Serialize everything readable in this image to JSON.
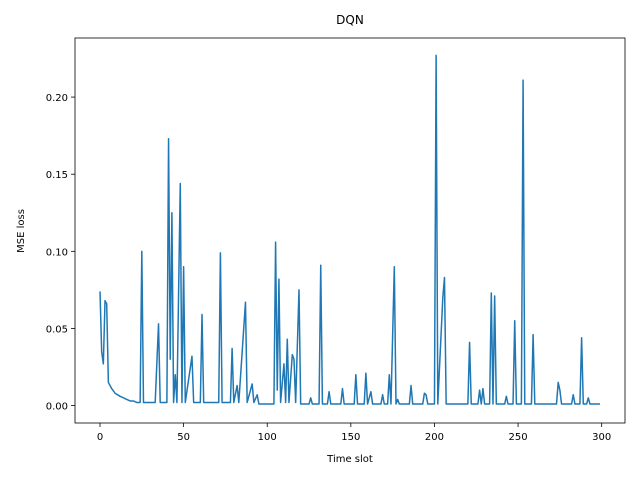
{
  "chart_data": {
    "type": "line",
    "title": "DQN",
    "xlabel": "Time slot",
    "ylabel": "MSE loss",
    "color": "#1f77b4",
    "x": [
      0,
      1,
      2,
      3,
      4,
      5,
      7,
      9,
      12,
      14,
      16,
      18,
      20,
      22,
      24,
      25,
      26,
      33,
      35,
      36,
      40,
      41,
      42,
      43,
      44,
      45,
      46,
      48,
      49,
      50,
      51,
      55,
      56,
      60,
      61,
      62,
      71,
      72,
      73,
      78,
      79,
      80,
      82,
      83,
      87,
      88,
      91,
      92,
      94,
      95,
      104,
      105,
      106,
      107,
      108,
      110,
      111,
      112,
      113,
      115,
      116,
      117,
      119,
      120,
      125,
      126,
      127,
      131,
      132,
      133,
      136,
      137,
      138,
      144,
      145,
      146,
      152,
      153,
      154,
      158,
      159,
      160,
      162,
      163,
      168,
      169,
      170,
      172,
      173,
      174,
      176,
      177,
      178,
      179,
      185,
      186,
      187,
      193,
      194,
      195,
      196,
      200,
      201,
      202,
      205,
      206,
      207,
      220,
      221,
      222,
      226,
      227,
      228,
      229,
      230,
      233,
      234,
      235,
      236,
      237,
      242,
      243,
      244,
      247,
      248,
      249,
      252,
      253,
      254,
      258,
      259,
      260,
      273,
      274,
      275,
      276,
      282,
      283,
      284,
      287,
      288,
      289,
      291,
      292,
      293,
      299
    ],
    "values": [
      0.074,
      0.035,
      0.027,
      0.068,
      0.066,
      0.015,
      0.011,
      0.008,
      0.006,
      0.005,
      0.004,
      0.003,
      0.003,
      0.002,
      0.002,
      0.1,
      0.002,
      0.002,
      0.053,
      0.002,
      0.002,
      0.173,
      0.03,
      0.125,
      0.002,
      0.02,
      0.002,
      0.144,
      0.002,
      0.09,
      0.002,
      0.032,
      0.002,
      0.002,
      0.059,
      0.002,
      0.002,
      0.099,
      0.002,
      0.002,
      0.037,
      0.002,
      0.013,
      0.002,
      0.067,
      0.002,
      0.014,
      0.002,
      0.007,
      0.001,
      0.001,
      0.106,
      0.01,
      0.082,
      0.002,
      0.027,
      0.002,
      0.043,
      0.002,
      0.033,
      0.03,
      0.002,
      0.075,
      0.001,
      0.001,
      0.005,
      0.001,
      0.001,
      0.091,
      0.001,
      0.001,
      0.009,
      0.001,
      0.001,
      0.011,
      0.001,
      0.001,
      0.02,
      0.001,
      0.001,
      0.021,
      0.001,
      0.009,
      0.001,
      0.001,
      0.007,
      0.001,
      0.001,
      0.02,
      0.001,
      0.09,
      0.001,
      0.004,
      0.001,
      0.001,
      0.013,
      0.001,
      0.001,
      0.008,
      0.007,
      0.001,
      0.001,
      0.227,
      0.001,
      0.07,
      0.083,
      0.001,
      0.001,
      0.041,
      0.001,
      0.001,
      0.01,
      0.001,
      0.011,
      0.001,
      0.001,
      0.073,
      0.001,
      0.071,
      0.001,
      0.001,
      0.006,
      0.001,
      0.001,
      0.055,
      0.001,
      0.001,
      0.211,
      0.001,
      0.001,
      0.046,
      0.001,
      0.001,
      0.015,
      0.01,
      0.001,
      0.001,
      0.007,
      0.001,
      0.001,
      0.044,
      0.001,
      0.001,
      0.005,
      0.001,
      0.001
    ],
    "xlim": [
      -14.95,
      313.95
    ],
    "xticks": [
      0,
      50,
      100,
      150,
      200,
      250,
      300
    ],
    "ylim": [
      -0.0113,
      0.2383
    ],
    "yticks": [
      {
        "value": 0,
        "label": "0.00"
      },
      {
        "value": 0.05,
        "label": "0.05"
      },
      {
        "value": 0.1,
        "label": "0.10"
      },
      {
        "value": 0.15,
        "label": "0.15"
      },
      {
        "value": 0.2,
        "label": "0.20"
      }
    ]
  }
}
